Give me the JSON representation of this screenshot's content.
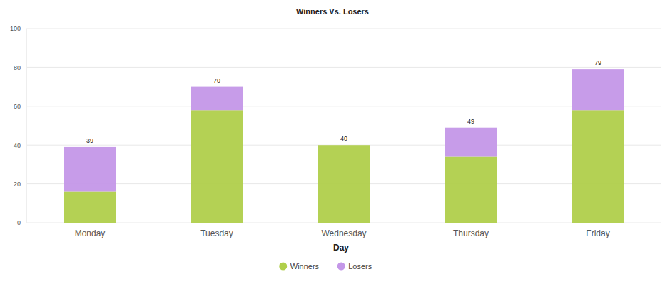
{
  "chart_data": {
    "type": "bar",
    "title": "Winners Vs. Losers",
    "x_label": "Day",
    "categories": [
      "Monday",
      "Tuesday",
      "Wednesday",
      "Thursday",
      "Friday"
    ],
    "series": [
      {
        "name": "Winners",
        "color": "#b0cf4b",
        "values": [
          16,
          58,
          40,
          34,
          58
        ]
      },
      {
        "name": "Losers",
        "color": "#c497e8",
        "values": [
          23,
          12,
          0,
          15,
          21
        ]
      }
    ],
    "totals": [
      39,
      70,
      40,
      49,
      79
    ],
    "stacked": true,
    "data_labels": true,
    "ylim": [
      0,
      100
    ],
    "yticks": [
      0,
      20,
      40,
      60,
      80,
      100
    ],
    "grid": true,
    "legend": "bottom"
  }
}
